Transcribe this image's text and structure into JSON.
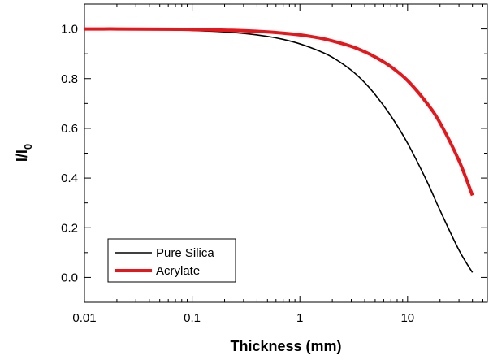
{
  "chart_data": {
    "type": "line",
    "xlabel": "Thickness (mm)",
    "ylabel_main": "I/I",
    "ylabel_sub": "0",
    "x_scale": "log",
    "xlim": [
      0.01,
      55
    ],
    "ylim": [
      -0.1,
      1.1
    ],
    "x_ticks": [
      {
        "value": 0.01,
        "label": "0.01"
      },
      {
        "value": 0.1,
        "label": "0.1"
      },
      {
        "value": 1,
        "label": "1"
      },
      {
        "value": 10,
        "label": "10"
      }
    ],
    "y_ticks": [
      {
        "value": 0.0,
        "label": "0.0"
      },
      {
        "value": 0.2,
        "label": "0.2"
      },
      {
        "value": 0.4,
        "label": "0.4"
      },
      {
        "value": 0.6,
        "label": "0.6"
      },
      {
        "value": 0.8,
        "label": "0.8"
      },
      {
        "value": 1.0,
        "label": "1.0"
      }
    ],
    "grid": false,
    "legend_position": "bottom-left",
    "series": [
      {
        "name": "Pure Silica",
        "color": "#000000",
        "x": [
          0.01,
          0.02,
          0.05,
          0.1,
          0.2,
          0.3,
          0.5,
          0.7,
          1,
          1.5,
          2,
          3,
          4,
          5,
          7,
          10,
          15,
          20,
          30,
          40
        ],
        "y": [
          1.0,
          0.999,
          0.997,
          0.994,
          0.988,
          0.982,
          0.97,
          0.958,
          0.94,
          0.912,
          0.886,
          0.834,
          0.784,
          0.736,
          0.65,
          0.54,
          0.39,
          0.27,
          0.11,
          0.02
        ]
      },
      {
        "name": "Acrylate",
        "color": "#e8151b",
        "x": [
          0.01,
          0.02,
          0.05,
          0.1,
          0.2,
          0.3,
          0.5,
          0.7,
          1,
          1.5,
          2,
          3,
          4,
          5,
          7,
          10,
          15,
          20,
          30,
          40
        ],
        "y": [
          1.0,
          1.0,
          0.999,
          0.998,
          0.995,
          0.993,
          0.988,
          0.983,
          0.976,
          0.964,
          0.952,
          0.93,
          0.908,
          0.887,
          0.848,
          0.792,
          0.703,
          0.622,
          0.47,
          0.33
        ]
      }
    ]
  }
}
